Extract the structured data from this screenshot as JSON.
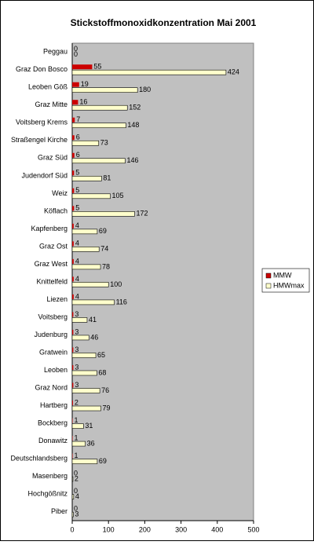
{
  "chart_data": {
    "type": "hbar",
    "title": "Stickstoffmonoxidkonzentration Mai 2001",
    "categories": [
      "Peggau",
      "Graz Don Bosco",
      "Leoben Göß",
      "Graz Mitte",
      "Voitsberg Krems",
      "Straßengel Kirche",
      "Graz Süd",
      "Judendorf Süd",
      "Weiz",
      "Köflach",
      "Kapfenberg",
      "Graz Ost",
      "Graz West",
      "Knittelfeld",
      "Liezen",
      "Voitsberg",
      "Judenburg",
      "Gratwein",
      "Leoben",
      "Graz Nord",
      "Hartberg",
      "Bockberg",
      "Donawitz",
      "Deutschlandsberg",
      "Masenberg",
      "Hochgößnitz",
      "Piber"
    ],
    "series": [
      {
        "name": "MMW",
        "color": "#cc0000",
        "values": [
          0,
          55,
          19,
          16,
          7,
          6,
          6,
          5,
          5,
          5,
          4,
          4,
          4,
          4,
          4,
          3,
          3,
          3,
          3,
          3,
          2,
          1,
          1,
          1,
          0,
          0,
          0
        ]
      },
      {
        "name": "HMWmax",
        "color": "#ffffcc",
        "values": [
          0,
          424,
          180,
          152,
          148,
          73,
          146,
          81,
          105,
          172,
          69,
          74,
          78,
          100,
          116,
          41,
          46,
          65,
          68,
          76,
          79,
          31,
          36,
          69,
          2,
          4,
          3
        ]
      }
    ],
    "xlim": [
      0,
      500
    ],
    "xticks": [
      0,
      100,
      200,
      300,
      400,
      500
    ],
    "plot_background": "#c0c0c0",
    "legend": "right"
  }
}
